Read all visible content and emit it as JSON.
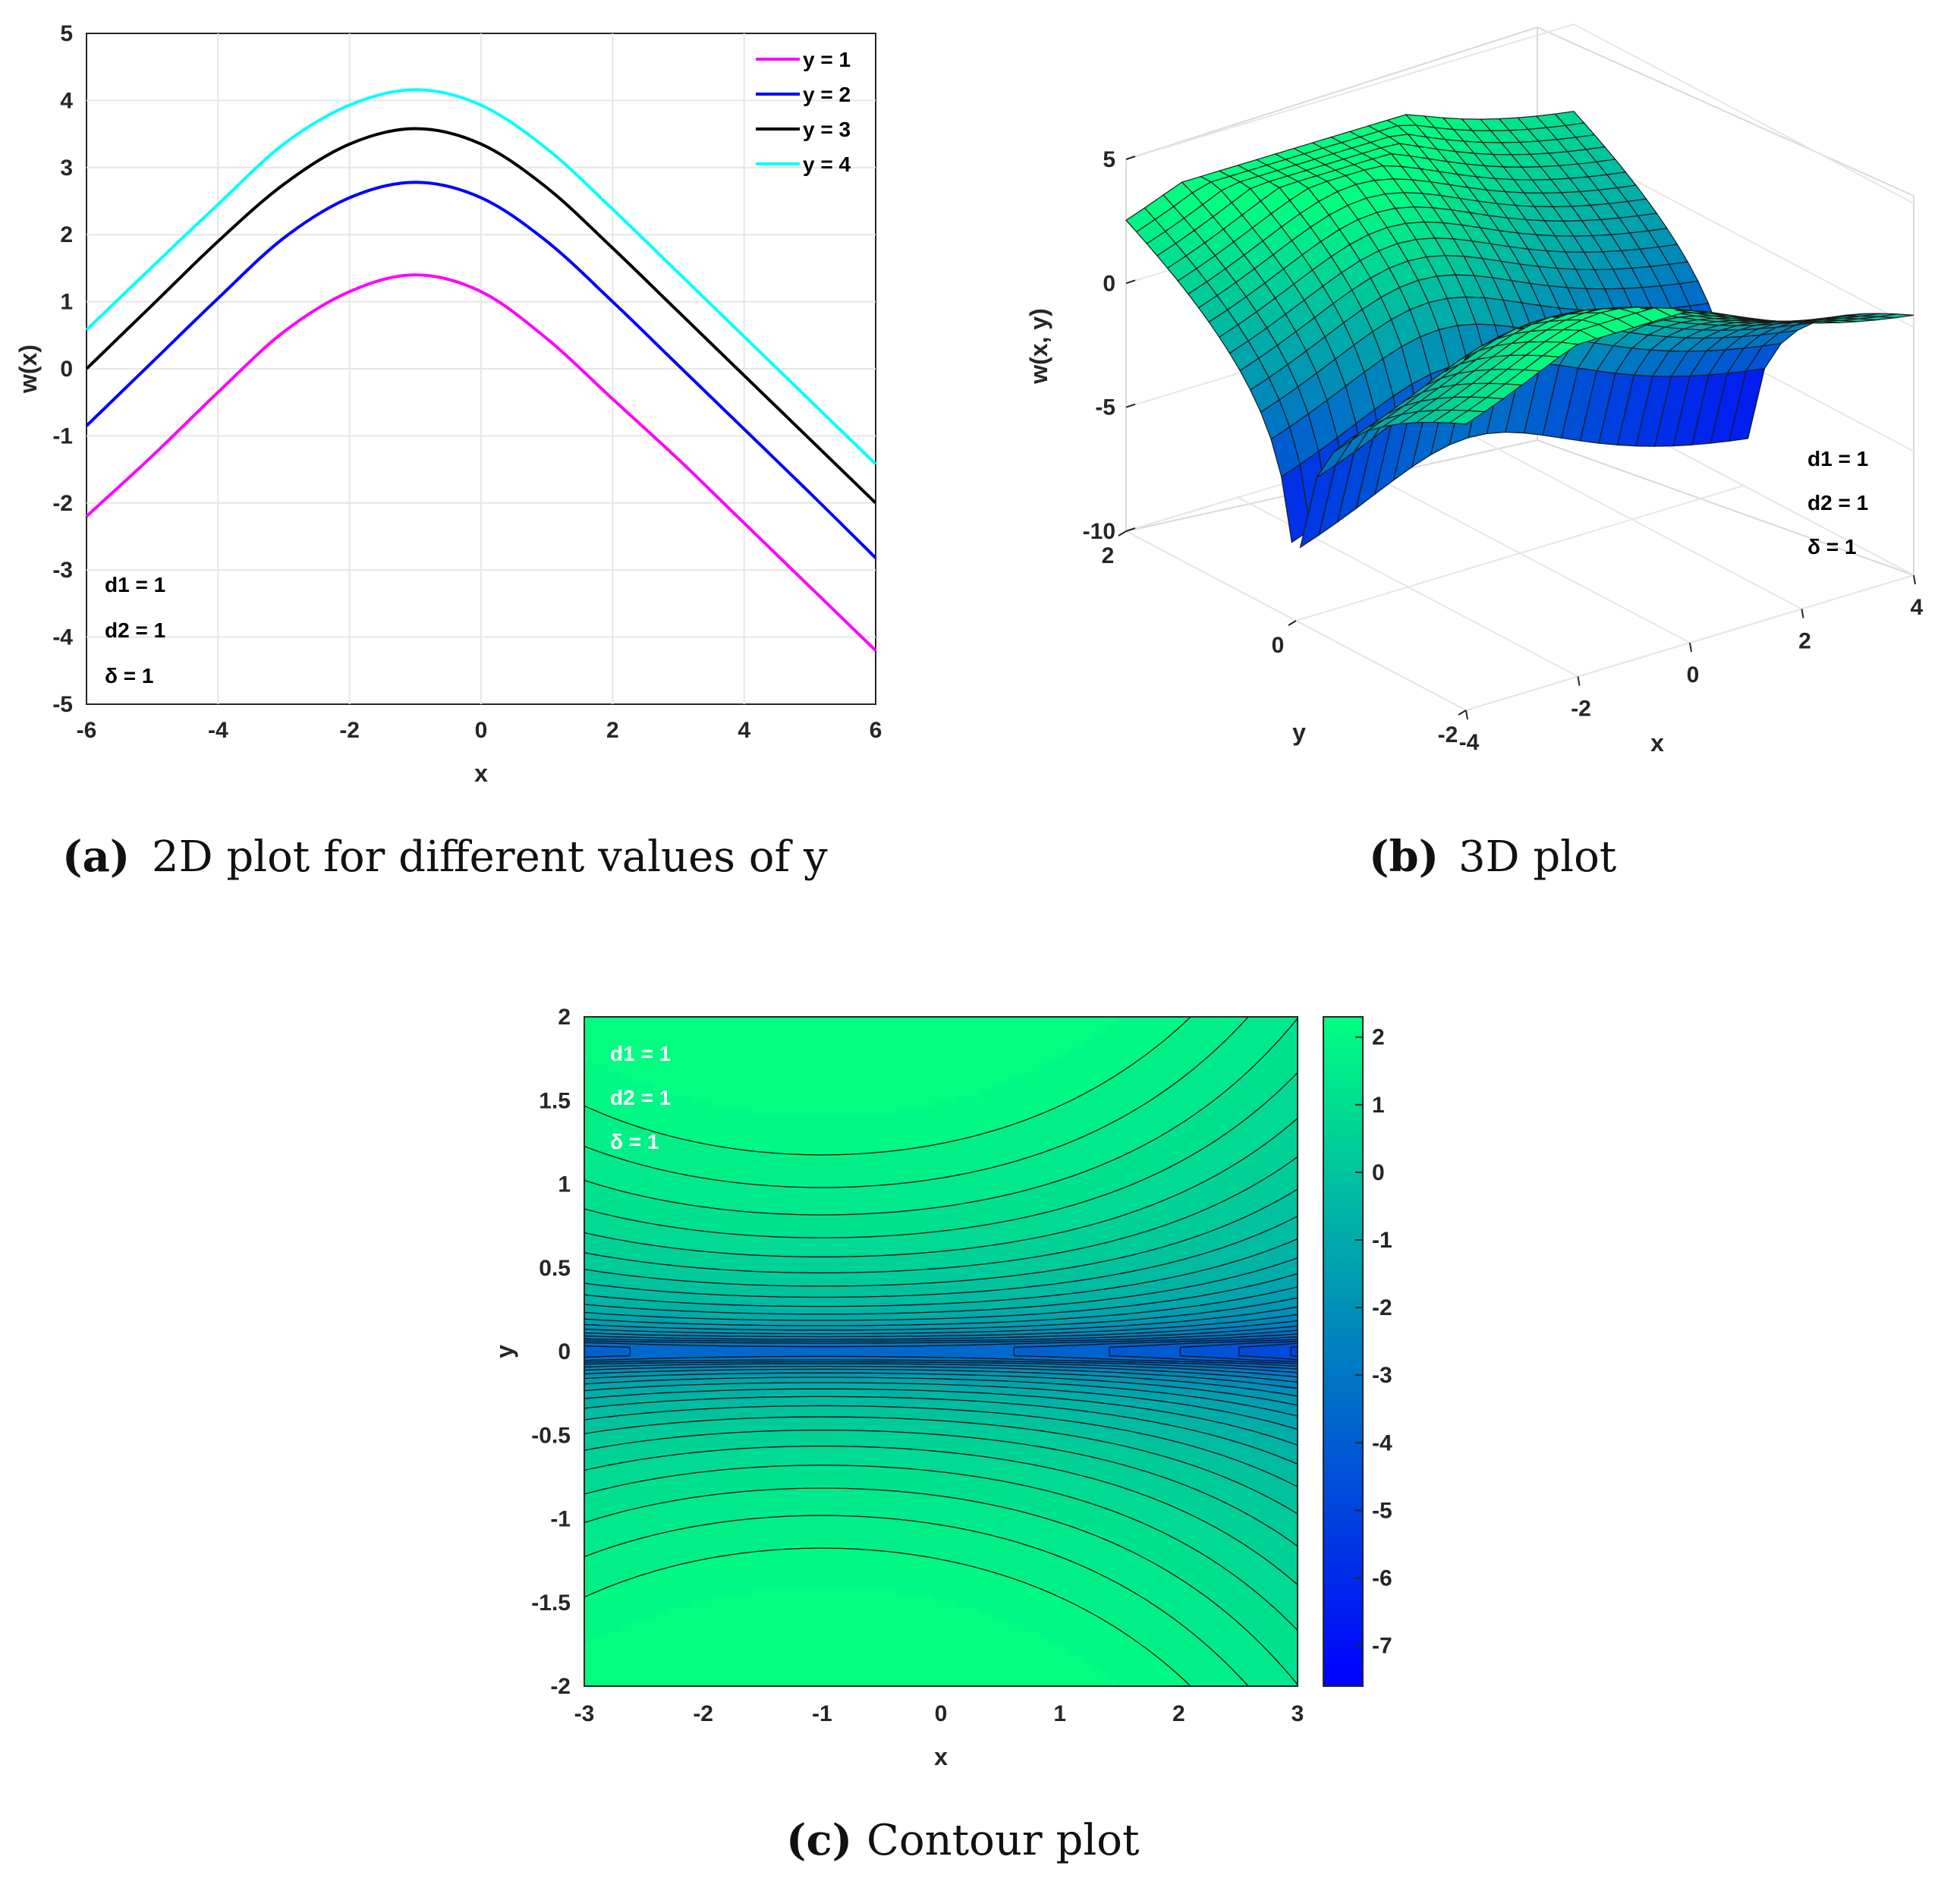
{
  "chart_data": [
    {
      "id": "a",
      "type": "line",
      "caption_letter": "a",
      "caption_text": "2D plot for different values of y",
      "xlabel": "x",
      "ylabel": "w(x)",
      "xlim": [
        -6,
        6
      ],
      "ylim": [
        -5,
        5
      ],
      "xticks": [
        "-6",
        "-4",
        "-2",
        "0",
        "2",
        "4",
        "6"
      ],
      "yticks": [
        "-5",
        "-4",
        "-3",
        "-2",
        "-1",
        "0",
        "1",
        "2",
        "3",
        "4",
        "5"
      ],
      "grid": true,
      "legend_position": "top-right",
      "x": [
        -6,
        -5,
        -4,
        -3,
        -2,
        -1,
        0,
        1,
        2,
        3,
        4,
        5,
        6
      ],
      "series": [
        {
          "name": "y = 1",
          "color": "#ff00ff",
          "values": [
            -2.2,
            -1.3,
            -0.35,
            0.55,
            1.15,
            1.4,
            1.15,
            0.45,
            -0.45,
            -1.35,
            -2.3,
            -3.25,
            -4.2
          ]
        },
        {
          "name": "y = 2",
          "color": "#0000ff",
          "values": [
            -0.85,
            0.1,
            1.05,
            1.95,
            2.55,
            2.78,
            2.55,
            1.9,
            1.0,
            0.05,
            -0.9,
            -1.85,
            -2.82
          ]
        },
        {
          "name": "y = 3",
          "color": "#000000",
          "values": [
            0.0,
            0.95,
            1.9,
            2.75,
            3.35,
            3.58,
            3.35,
            2.7,
            1.8,
            0.85,
            -0.1,
            -1.05,
            -2.0
          ]
        },
        {
          "name": "y = 4",
          "color": "#00ffff",
          "values": [
            0.58,
            1.52,
            2.45,
            3.35,
            3.93,
            4.16,
            3.93,
            3.28,
            2.38,
            1.43,
            0.48,
            -0.47,
            -1.42
          ]
        }
      ],
      "params": [
        "d1 = 1",
        "d2 = 1",
        "δ = 1"
      ]
    },
    {
      "id": "b",
      "type": "surface",
      "caption_letter": "b",
      "caption_text": "3D plot",
      "xlabel": "x",
      "ylabel": "y",
      "zlabel": "w(x, y)",
      "xlim": [
        -4,
        4
      ],
      "ylim": [
        -2,
        2
      ],
      "zlim": [
        -10,
        5
      ],
      "xticks": [
        "-4",
        "-2",
        "0",
        "2",
        "4"
      ],
      "yticks": [
        "-2",
        "0",
        "2"
      ],
      "zticks": [
        "-10",
        "-5",
        "0",
        "5"
      ],
      "colormap": [
        "#0000ff",
        "#00ff80"
      ],
      "params": [
        "d1 = 1",
        "d2 = 1",
        "δ = 1"
      ]
    },
    {
      "id": "c",
      "type": "heatmap",
      "caption_letter": "c",
      "caption_text": "Contour plot",
      "xlabel": "x",
      "ylabel": "y",
      "xlim": [
        -3,
        3
      ],
      "ylim": [
        -2,
        2
      ],
      "xticks": [
        "-3",
        "-2",
        "-1",
        "0",
        "1",
        "2",
        "3"
      ],
      "yticks": [
        "-2",
        "-1.5",
        "-1",
        "-0.5",
        "0",
        "0.5",
        "1",
        "1.5",
        "2"
      ],
      "colorbar_range": [
        -7.6,
        2.3
      ],
      "colorbar_ticks": [
        "2",
        "1",
        "0",
        "-1",
        "-2",
        "-3",
        "-4",
        "-5",
        "-6",
        "-7"
      ],
      "colormap": [
        "#0000ff",
        "#00ff80"
      ],
      "params": [
        "d1 = 1",
        "d2 = 1",
        "δ = 1"
      ]
    }
  ]
}
